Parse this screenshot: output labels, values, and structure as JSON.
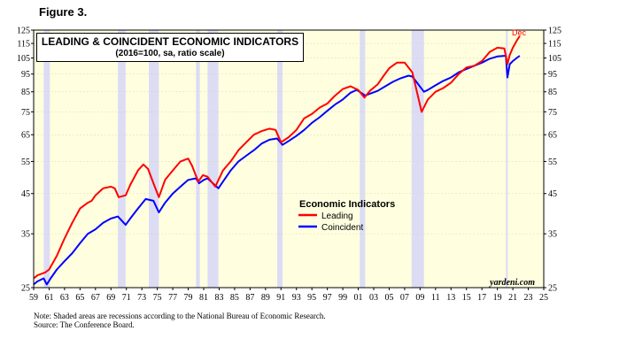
{
  "figure_label": "Figure 3.",
  "notes": {
    "line1": "Note: Shaded areas are recessions according to the National Bureau of Economic Research.",
    "line2": "Source: The Conference Board."
  },
  "chart_data": {
    "type": "line",
    "title": "LEADING & COINCIDENT ECONOMIC INDICATORS",
    "subtitle": "(2016=100, sa, ratio scale)",
    "y_scale": "log",
    "ylim": [
      25,
      125
    ],
    "yticks": [
      25,
      35,
      45,
      55,
      65,
      75,
      85,
      95,
      105,
      115,
      125
    ],
    "xlim": [
      1959,
      2025
    ],
    "xticks": [
      "59",
      "61",
      "63",
      "65",
      "67",
      "69",
      "71",
      "73",
      "75",
      "77",
      "79",
      "81",
      "83",
      "85",
      "87",
      "89",
      "91",
      "93",
      "95",
      "97",
      "99",
      "01",
      "03",
      "05",
      "07",
      "09",
      "11",
      "13",
      "15",
      "17",
      "19",
      "21",
      "23",
      "25"
    ],
    "legend_title": "Economic Indicators",
    "legend_position": "center",
    "watermark": "yardeni.com",
    "annotation": "Dec",
    "colors": {
      "plot_bg": "#ffffe0",
      "recession": "#dcdcf5",
      "leading": "#ff0000",
      "coincident": "#0000ff"
    },
    "recessions": [
      [
        1960.3,
        1961.1
      ],
      [
        1969.9,
        1970.9
      ],
      [
        1973.9,
        1975.2
      ],
      [
        1980.0,
        1980.5
      ],
      [
        1981.5,
        1982.9
      ],
      [
        1990.5,
        1991.2
      ],
      [
        2001.2,
        2001.9
      ],
      [
        2007.9,
        2009.5
      ],
      [
        2020.1,
        2020.35
      ]
    ],
    "series": [
      {
        "name": "Leading",
        "x": [
          1959.0,
          1959.5,
          1960.5,
          1961.0,
          1962.0,
          1963.0,
          1964.0,
          1965.0,
          1966.0,
          1966.5,
          1967.0,
          1968.0,
          1969.0,
          1969.5,
          1970.0,
          1970.9,
          1971.5,
          1972.5,
          1973.2,
          1973.8,
          1974.5,
          1975.2,
          1976.0,
          1977.0,
          1978.0,
          1979.0,
          1979.5,
          1980.3,
          1980.9,
          1981.5,
          1982.5,
          1983.5,
          1984.5,
          1985.5,
          1986.5,
          1987.5,
          1988.5,
          1989.5,
          1990.3,
          1991.0,
          1992.0,
          1993.0,
          1994.0,
          1995.0,
          1996.0,
          1997.0,
          1998.0,
          1999.0,
          2000.0,
          2001.0,
          2001.8,
          2002.5,
          2003.5,
          2004.3,
          2005.0,
          2006.0,
          2007.0,
          2008.0,
          2009.2,
          2010.0,
          2011.0,
          2012.0,
          2013.0,
          2014.0,
          2015.0,
          2016.0,
          2017.0,
          2018.0,
          2019.0,
          2019.9,
          2020.3,
          2020.6,
          2021.0,
          2021.5,
          2021.9
        ],
        "values": [
          26.5,
          27.0,
          27.5,
          28.0,
          30.5,
          34.0,
          37.5,
          41.0,
          42.5,
          43.0,
          44.5,
          46.5,
          47.0,
          46.5,
          44.0,
          44.5,
          47.5,
          52.0,
          54.0,
          52.5,
          48.0,
          44.0,
          49.0,
          52.0,
          55.0,
          56.0,
          53.5,
          48.5,
          50.5,
          50.0,
          47.0,
          52.0,
          55.0,
          59.0,
          62.0,
          65.0,
          66.5,
          67.5,
          67.0,
          62.0,
          64.0,
          67.0,
          72.0,
          74.0,
          77.0,
          79.0,
          83.0,
          86.5,
          88.0,
          86.0,
          82.0,
          85.5,
          89.0,
          94.0,
          98.5,
          102.0,
          102.0,
          96.0,
          75.0,
          81.0,
          85.0,
          87.0,
          90.0,
          95.0,
          99.0,
          100.0,
          103.0,
          109.0,
          112.0,
          111.5,
          101.0,
          107.0,
          112.0,
          117.0,
          120.5
        ]
      },
      {
        "name": "Coincident",
        "x": [
          1959.0,
          1959.5,
          1960.3,
          1960.7,
          1961.2,
          1962.0,
          1963.0,
          1964.0,
          1965.0,
          1966.0,
          1967.0,
          1968.0,
          1969.0,
          1969.9,
          1970.9,
          1971.5,
          1972.5,
          1973.5,
          1974.5,
          1975.2,
          1976.0,
          1977.0,
          1978.0,
          1979.0,
          1980.0,
          1980.4,
          1981.0,
          1981.5,
          1982.9,
          1983.5,
          1984.5,
          1985.5,
          1986.5,
          1987.5,
          1988.5,
          1989.5,
          1990.5,
          1991.2,
          1992.0,
          1993.0,
          1994.0,
          1995.0,
          1996.0,
          1997.0,
          1998.0,
          1999.0,
          2000.0,
          2000.8,
          2001.9,
          2002.5,
          2003.5,
          2004.5,
          2005.5,
          2006.5,
          2007.5,
          2008.0,
          2009.5,
          2010.0,
          2011.0,
          2012.0,
          2013.0,
          2014.0,
          2015.0,
          2016.0,
          2017.0,
          2018.0,
          2019.0,
          2020.1,
          2020.3,
          2020.6,
          2021.0,
          2021.5,
          2021.9
        ],
        "values": [
          25.5,
          26.0,
          26.5,
          25.5,
          26.5,
          28.0,
          29.5,
          31.0,
          33.0,
          35.0,
          36.0,
          37.5,
          38.5,
          39.0,
          37.0,
          38.5,
          41.0,
          43.5,
          43.0,
          40.0,
          42.5,
          45.0,
          47.0,
          49.0,
          49.5,
          48.0,
          49.0,
          49.5,
          46.5,
          48.5,
          52.0,
          55.0,
          57.0,
          59.0,
          61.5,
          63.0,
          63.5,
          61.0,
          62.5,
          64.5,
          67.0,
          70.0,
          72.5,
          75.5,
          78.5,
          81.0,
          84.5,
          86.0,
          83.0,
          84.0,
          85.5,
          88.0,
          90.5,
          92.5,
          94.0,
          93.5,
          85.0,
          86.0,
          88.5,
          91.0,
          93.0,
          96.0,
          98.0,
          100.0,
          102.0,
          104.5,
          106.0,
          106.5,
          93.0,
          101.0,
          103.0,
          105.0,
          106.5
        ]
      }
    ]
  }
}
